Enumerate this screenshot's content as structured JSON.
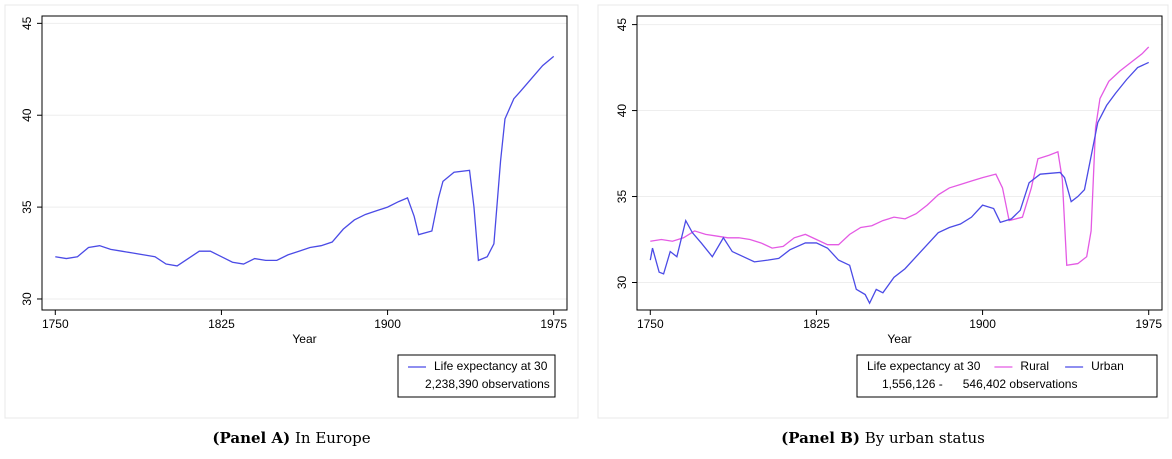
{
  "chart_data": [
    {
      "type": "line",
      "caption_label": "(Panel A)",
      "caption": "In Europe",
      "x_label": "Year",
      "xlim": [
        1744,
        1981
      ],
      "xticks": [
        1750,
        1825,
        1900,
        1975
      ],
      "ylim": [
        29.4,
        45.4
      ],
      "yticks": [
        30,
        35,
        40,
        45
      ],
      "grid": true,
      "series": [
        {
          "name": "Life expectancy at 30",
          "color": "#4b4be6",
          "x": [
            1750,
            1755,
            1760,
            1765,
            1770,
            1775,
            1780,
            1785,
            1790,
            1795,
            1800,
            1805,
            1810,
            1815,
            1820,
            1825,
            1830,
            1835,
            1840,
            1845,
            1850,
            1855,
            1860,
            1865,
            1870,
            1875,
            1880,
            1885,
            1890,
            1895,
            1900,
            1905,
            1909,
            1912,
            1914,
            1920,
            1923,
            1925,
            1930,
            1937,
            1939,
            1941,
            1945,
            1948,
            1951,
            1953,
            1957,
            1960,
            1965,
            1970,
            1975
          ],
          "values": [
            32.3,
            32.2,
            32.3,
            32.8,
            32.9,
            32.7,
            32.6,
            32.5,
            32.4,
            32.3,
            31.9,
            31.8,
            32.2,
            32.6,
            32.6,
            32.3,
            32.0,
            31.9,
            32.2,
            32.1,
            32.1,
            32.4,
            32.6,
            32.8,
            32.9,
            33.1,
            33.8,
            34.3,
            34.6,
            34.8,
            35.0,
            35.3,
            35.5,
            34.5,
            33.5,
            33.7,
            35.5,
            36.4,
            36.9,
            37.0,
            35.0,
            32.1,
            32.3,
            33.0,
            37.5,
            39.8,
            40.9,
            41.3,
            42.0,
            42.7,
            43.2
          ]
        }
      ],
      "legend_notes": [
        "2,238,390 observations"
      ]
    },
    {
      "type": "line",
      "caption_label": "(Panel B)",
      "caption": "By urban status",
      "x_label": "Year",
      "xlim": [
        1744,
        1981
      ],
      "xticks": [
        1750,
        1825,
        1900,
        1975
      ],
      "ylim": [
        28.4,
        45.5
      ],
      "yticks": [
        30,
        35,
        40,
        45
      ],
      "grid": true,
      "legend_title": "Life expectancy at 30",
      "series": [
        {
          "name": "Rural",
          "color": "#e45ae4",
          "x": [
            1750,
            1755,
            1760,
            1765,
            1770,
            1775,
            1780,
            1785,
            1790,
            1795,
            1800,
            1805,
            1810,
            1815,
            1820,
            1825,
            1830,
            1835,
            1840,
            1845,
            1850,
            1855,
            1860,
            1865,
            1870,
            1875,
            1880,
            1885,
            1890,
            1895,
            1900,
            1906,
            1909,
            1912,
            1918,
            1922,
            1925,
            1930,
            1934,
            1936,
            1938,
            1943,
            1947,
            1949,
            1951,
            1953,
            1957,
            1962,
            1967,
            1972,
            1975
          ],
          "values": [
            32.4,
            32.5,
            32.4,
            32.6,
            33.0,
            32.8,
            32.7,
            32.6,
            32.6,
            32.5,
            32.3,
            32.0,
            32.1,
            32.6,
            32.8,
            32.5,
            32.2,
            32.2,
            32.8,
            33.2,
            33.3,
            33.6,
            33.8,
            33.7,
            34.0,
            34.5,
            35.1,
            35.5,
            35.7,
            35.9,
            36.1,
            36.3,
            35.5,
            33.6,
            33.8,
            35.5,
            37.2,
            37.4,
            37.6,
            36.0,
            31.0,
            31.1,
            31.5,
            33.0,
            39.0,
            40.7,
            41.7,
            42.3,
            42.8,
            43.3,
            43.7
          ]
        },
        {
          "name": "Urban",
          "color": "#4b4be6",
          "x": [
            1750,
            1751,
            1754,
            1756,
            1759,
            1762,
            1766,
            1769,
            1773,
            1778,
            1783,
            1787,
            1792,
            1797,
            1803,
            1808,
            1813,
            1820,
            1825,
            1830,
            1835,
            1840,
            1843,
            1847,
            1849,
            1852,
            1855,
            1860,
            1865,
            1870,
            1875,
            1880,
            1885,
            1890,
            1895,
            1900,
            1905,
            1908,
            1913,
            1917,
            1921,
            1926,
            1935,
            1937,
            1940,
            1943,
            1946,
            1950,
            1952,
            1956,
            1960,
            1965,
            1970,
            1975
          ],
          "values": [
            31.3,
            32.0,
            30.6,
            30.5,
            31.8,
            31.5,
            33.6,
            32.9,
            32.3,
            31.5,
            32.6,
            31.8,
            31.5,
            31.2,
            31.3,
            31.4,
            31.9,
            32.3,
            32.3,
            32.0,
            31.3,
            31.0,
            29.6,
            29.3,
            28.8,
            29.6,
            29.4,
            30.3,
            30.8,
            31.5,
            32.2,
            32.9,
            33.2,
            33.4,
            33.8,
            34.5,
            34.3,
            33.5,
            33.7,
            34.2,
            35.8,
            36.3,
            36.4,
            36.1,
            34.7,
            35.0,
            35.4,
            38.0,
            39.3,
            40.3,
            41.0,
            41.8,
            42.5,
            42.8
          ]
        }
      ],
      "legend_notes": [
        "1,556,126 -",
        "546,402 observations"
      ]
    }
  ]
}
